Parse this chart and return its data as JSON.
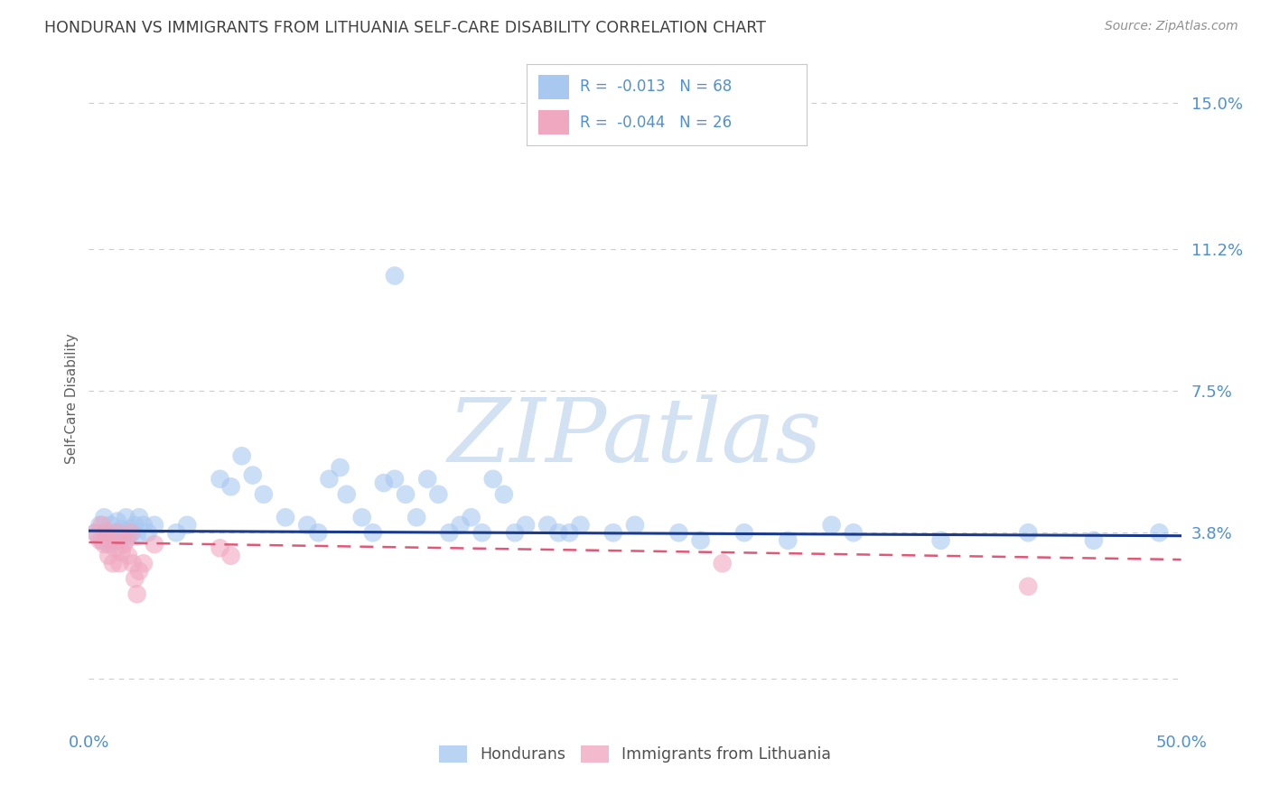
{
  "title": "HONDURAN VS IMMIGRANTS FROM LITHUANIA SELF-CARE DISABILITY CORRELATION CHART",
  "source": "Source: ZipAtlas.com",
  "ylabel": "Self-Care Disability",
  "xlabel": "",
  "xlim": [
    0.0,
    0.5
  ],
  "ylim": [
    -0.012,
    0.158
  ],
  "yticks": [
    0.0,
    0.038,
    0.075,
    0.112,
    0.15
  ],
  "ytick_labels": [
    "",
    "3.8%",
    "7.5%",
    "11.2%",
    "15.0%"
  ],
  "xticks": [
    0.0,
    0.1,
    0.2,
    0.3,
    0.4,
    0.5
  ],
  "xtick_labels": [
    "0.0%",
    "",
    "",
    "",
    "",
    "50.0%"
  ],
  "honduran_color": "#a8c8f0",
  "lithuania_color": "#f0a8c0",
  "trend_honduran_color": "#1a3a8c",
  "trend_lithuania_color": "#e05878",
  "background_color": "#ffffff",
  "grid_color": "#cccccc",
  "title_color": "#404040",
  "axis_color": "#5090d0",
  "legend_text_color": "#5090d0",
  "trend_h_start": 0.0385,
  "trend_h_end": 0.0372,
  "trend_l_start": 0.0355,
  "trend_l_end": 0.031,
  "honduran_points": [
    [
      0.003,
      0.038
    ],
    [
      0.005,
      0.04
    ],
    [
      0.006,
      0.036
    ],
    [
      0.007,
      0.042
    ],
    [
      0.008,
      0.038
    ],
    [
      0.009,
      0.035
    ],
    [
      0.01,
      0.04
    ],
    [
      0.011,
      0.037
    ],
    [
      0.012,
      0.038
    ],
    [
      0.013,
      0.041
    ],
    [
      0.014,
      0.036
    ],
    [
      0.015,
      0.039
    ],
    [
      0.016,
      0.038
    ],
    [
      0.017,
      0.042
    ],
    [
      0.018,
      0.037
    ],
    [
      0.019,
      0.039
    ],
    [
      0.02,
      0.038
    ],
    [
      0.021,
      0.04
    ],
    [
      0.022,
      0.037
    ],
    [
      0.023,
      0.042
    ],
    [
      0.025,
      0.04
    ],
    [
      0.027,
      0.038
    ],
    [
      0.03,
      0.04
    ],
    [
      0.04,
      0.038
    ],
    [
      0.045,
      0.04
    ],
    [
      0.06,
      0.052
    ],
    [
      0.065,
      0.05
    ],
    [
      0.07,
      0.058
    ],
    [
      0.075,
      0.053
    ],
    [
      0.08,
      0.048
    ],
    [
      0.09,
      0.042
    ],
    [
      0.1,
      0.04
    ],
    [
      0.105,
      0.038
    ],
    [
      0.11,
      0.052
    ],
    [
      0.115,
      0.055
    ],
    [
      0.118,
      0.048
    ],
    [
      0.125,
      0.042
    ],
    [
      0.13,
      0.038
    ],
    [
      0.135,
      0.051
    ],
    [
      0.14,
      0.052
    ],
    [
      0.145,
      0.048
    ],
    [
      0.15,
      0.042
    ],
    [
      0.155,
      0.052
    ],
    [
      0.16,
      0.048
    ],
    [
      0.165,
      0.038
    ],
    [
      0.17,
      0.04
    ],
    [
      0.175,
      0.042
    ],
    [
      0.18,
      0.038
    ],
    [
      0.185,
      0.052
    ],
    [
      0.19,
      0.048
    ],
    [
      0.195,
      0.038
    ],
    [
      0.2,
      0.04
    ],
    [
      0.21,
      0.04
    ],
    [
      0.215,
      0.038
    ],
    [
      0.22,
      0.038
    ],
    [
      0.225,
      0.04
    ],
    [
      0.24,
      0.038
    ],
    [
      0.25,
      0.04
    ],
    [
      0.27,
      0.038
    ],
    [
      0.28,
      0.036
    ],
    [
      0.3,
      0.038
    ],
    [
      0.32,
      0.036
    ],
    [
      0.34,
      0.04
    ],
    [
      0.35,
      0.038
    ],
    [
      0.39,
      0.036
    ],
    [
      0.43,
      0.038
    ],
    [
      0.46,
      0.036
    ],
    [
      0.49,
      0.038
    ],
    [
      0.14,
      0.105
    ]
  ],
  "lithuania_points": [
    [
      0.003,
      0.038
    ],
    [
      0.005,
      0.036
    ],
    [
      0.006,
      0.04
    ],
    [
      0.007,
      0.035
    ],
    [
      0.008,
      0.038
    ],
    [
      0.009,
      0.032
    ],
    [
      0.01,
      0.036
    ],
    [
      0.011,
      0.03
    ],
    [
      0.012,
      0.034
    ],
    [
      0.013,
      0.038
    ],
    [
      0.014,
      0.03
    ],
    [
      0.015,
      0.033
    ],
    [
      0.016,
      0.035
    ],
    [
      0.017,
      0.036
    ],
    [
      0.018,
      0.032
    ],
    [
      0.019,
      0.038
    ],
    [
      0.02,
      0.03
    ],
    [
      0.021,
      0.026
    ],
    [
      0.022,
      0.022
    ],
    [
      0.023,
      0.028
    ],
    [
      0.025,
      0.03
    ],
    [
      0.03,
      0.035
    ],
    [
      0.06,
      0.034
    ],
    [
      0.065,
      0.032
    ],
    [
      0.29,
      0.03
    ],
    [
      0.43,
      0.024
    ]
  ],
  "watermark_text": "ZIPatlas",
  "watermark_color": "#ccddf0"
}
